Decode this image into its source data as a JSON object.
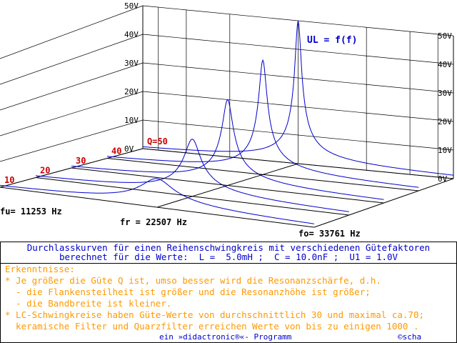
{
  "chart_data": {
    "type": "line",
    "title": "UL = f(f)",
    "ylabel_ticks": [
      "0V",
      "10V",
      "20V",
      "30V",
      "40V",
      "50V"
    ],
    "ylim": [
      0,
      50
    ],
    "x_labels": {
      "fu": "fu= 11253 Hz",
      "fr": "fr = 22507 Hz",
      "fo": "fo= 33761 Hz"
    },
    "q_labels": [
      "10",
      "20",
      "30",
      "40",
      "Q=50"
    ],
    "series": [
      {
        "q": 10,
        "peak_v": 10.0
      },
      {
        "q": 20,
        "peak_v": 20.0
      },
      {
        "q": 30,
        "peak_v": 30.0
      },
      {
        "q": 40,
        "peak_v": 40.0
      },
      {
        "q": 50,
        "peak_v": 50.0
      }
    ],
    "grid": true,
    "colors": {
      "curve": "#0000cc",
      "axis": "#000000",
      "q_label": "#cc0000",
      "title": "#0000cc"
    }
  },
  "info": {
    "line0": "Durchlasskurven für einen Reihenschwingkreis mit verschiedenen Gütefaktoren",
    "line1": "berechnet für die Werte:  L =  5.0mH ;  C = 10.0nF ;  U1 = 1.0V",
    "line2": "Erkenntnisse:",
    "line3": "* Je größer die Güte Q ist, umso besser wird die Resonanzschärfe, d.h.",
    "line4": "  - die Flankensteilheit ist größer und die Resonanzhöhe ist größer;",
    "line5": "  - die Bandbreite ist kleiner.",
    "line6": "* LC-Schwingkreise haben Güte-Werte von durchschnittlich 30 und maximal ca.70;",
    "line7": "  keramische Filter und Quarzfilter erreichen Werte von bis zu einigen 1000 .",
    "footer_program": "ein »didactronic®«- Programm",
    "footer_copy": "©scha"
  },
  "colors": {
    "info_blue": "#0000cc",
    "info_orange": "#ff9900"
  }
}
